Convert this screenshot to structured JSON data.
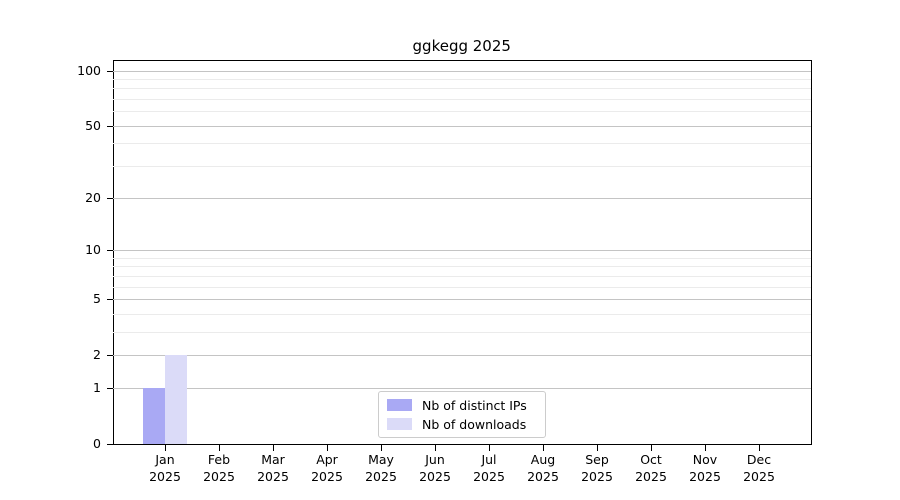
{
  "chart_data": {
    "type": "bar",
    "title": "ggkegg 2025",
    "categories": [
      "Jan",
      "Feb",
      "Mar",
      "Apr",
      "May",
      "Jun",
      "Jul",
      "Aug",
      "Sep",
      "Oct",
      "Nov",
      "Dec"
    ],
    "year_label": "2025",
    "series": [
      {
        "name": "Nb of distinct IPs",
        "color": "#a9a9f4",
        "values": [
          1,
          0,
          0,
          0,
          0,
          0,
          0,
          0,
          0,
          0,
          0,
          0
        ]
      },
      {
        "name": "Nb of downloads",
        "color": "#dbdbf8",
        "values": [
          2,
          0,
          0,
          0,
          0,
          0,
          0,
          0,
          0,
          0,
          0,
          0
        ]
      }
    ],
    "y_scale": "log10(1+x)",
    "y_ticks": [
      0,
      1,
      2,
      5,
      10,
      20,
      50,
      100
    ],
    "y_minor_gridlines": [
      3,
      4,
      6,
      7,
      8,
      9,
      30,
      40,
      60,
      70,
      80,
      90
    ],
    "grid": "horizontal",
    "legend_position": "lower center",
    "colors": {
      "axis": "#000000",
      "major_grid": "#c4c4c4",
      "minor_grid": "#ebebeb",
      "legend_border": "#cccccc",
      "background": "#ffffff"
    }
  }
}
